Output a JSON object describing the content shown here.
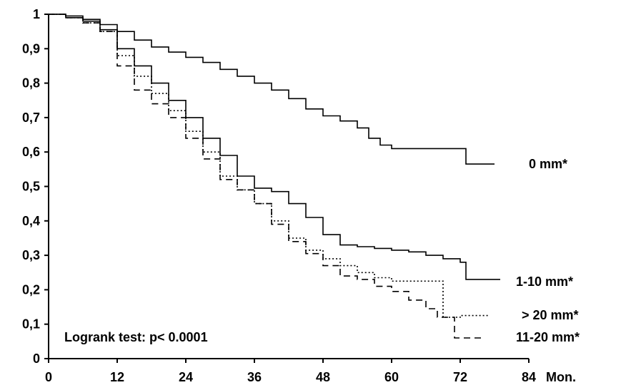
{
  "chart_data": {
    "type": "line",
    "step": true,
    "title": "",
    "xlabel": "",
    "ylabel": "",
    "x_unit_label": "Mon.",
    "xlim": [
      0,
      84
    ],
    "ylim": [
      0,
      1
    ],
    "x_ticks": [
      0,
      12,
      24,
      36,
      48,
      60,
      72,
      84
    ],
    "x_tick_labels": [
      "0",
      "12",
      "24",
      "36",
      "48",
      "60",
      "72",
      "84"
    ],
    "y_ticks": [
      0,
      0.1,
      0.2,
      0.3,
      0.4,
      0.5,
      0.6,
      0.7,
      0.8,
      0.9,
      1
    ],
    "y_tick_labels": [
      "0",
      "0,1",
      "0,2",
      "0,3",
      "0,4",
      "0,5",
      "0,6",
      "0,7",
      "0,8",
      "0,9",
      "1"
    ],
    "grid": false,
    "annotation": "Logrank test: p< 0.0001",
    "series": [
      {
        "name": "0 mm*",
        "line_style": "solid",
        "x": [
          0,
          3,
          6,
          9,
          12,
          15,
          18,
          21,
          24,
          27,
          30,
          33,
          36,
          39,
          42,
          45,
          48,
          51,
          54,
          56,
          58,
          60,
          62,
          66,
          70,
          73,
          75,
          78
        ],
        "y": [
          1,
          0.995,
          0.985,
          0.97,
          0.95,
          0.925,
          0.905,
          0.89,
          0.875,
          0.86,
          0.84,
          0.82,
          0.8,
          0.78,
          0.755,
          0.725,
          0.705,
          0.69,
          0.67,
          0.64,
          0.62,
          0.61,
          0.61,
          0.61,
          0.61,
          0.565,
          0.565,
          0.565
        ]
      },
      {
        "name": "1-10 mm*",
        "line_style": "solid",
        "x": [
          0,
          3,
          6,
          9,
          12,
          15,
          18,
          21,
          24,
          27,
          30,
          33,
          36,
          39,
          42,
          45,
          48,
          51,
          54,
          57,
          60,
          63,
          66,
          69,
          72,
          73,
          76,
          79
        ],
        "y": [
          1,
          0.99,
          0.98,
          0.955,
          0.9,
          0.85,
          0.8,
          0.75,
          0.7,
          0.64,
          0.59,
          0.53,
          0.495,
          0.485,
          0.45,
          0.41,
          0.36,
          0.33,
          0.325,
          0.32,
          0.315,
          0.31,
          0.3,
          0.29,
          0.28,
          0.23,
          0.23,
          0.23
        ]
      },
      {
        "name": "> 20 mm*",
        "line_style": "dotted",
        "x": [
          0,
          3,
          6,
          9,
          12,
          15,
          18,
          21,
          24,
          27,
          30,
          33,
          36,
          39,
          42,
          45,
          48,
          51,
          54,
          57,
          60,
          63,
          66,
          68,
          69,
          70,
          72,
          74,
          77
        ],
        "y": [
          1,
          0.99,
          0.975,
          0.95,
          0.88,
          0.82,
          0.77,
          0.72,
          0.66,
          0.6,
          0.53,
          0.49,
          0.45,
          0.4,
          0.35,
          0.315,
          0.29,
          0.27,
          0.25,
          0.235,
          0.225,
          0.225,
          0.225,
          0.225,
          0.12,
          0.12,
          0.125,
          0.125,
          0.125
        ]
      },
      {
        "name": "11-20 mm*",
        "line_style": "dashed",
        "x": [
          0,
          3,
          6,
          9,
          12,
          15,
          18,
          21,
          24,
          27,
          30,
          33,
          36,
          39,
          42,
          45,
          48,
          51,
          54,
          57,
          60,
          63,
          66,
          68,
          70,
          71,
          73,
          76
        ],
        "y": [
          1,
          0.99,
          0.975,
          0.95,
          0.85,
          0.78,
          0.74,
          0.7,
          0.64,
          0.58,
          0.52,
          0.49,
          0.45,
          0.39,
          0.34,
          0.305,
          0.27,
          0.24,
          0.23,
          0.21,
          0.195,
          0.17,
          0.145,
          0.12,
          0.12,
          0.06,
          0.06,
          0.06
        ]
      }
    ]
  }
}
